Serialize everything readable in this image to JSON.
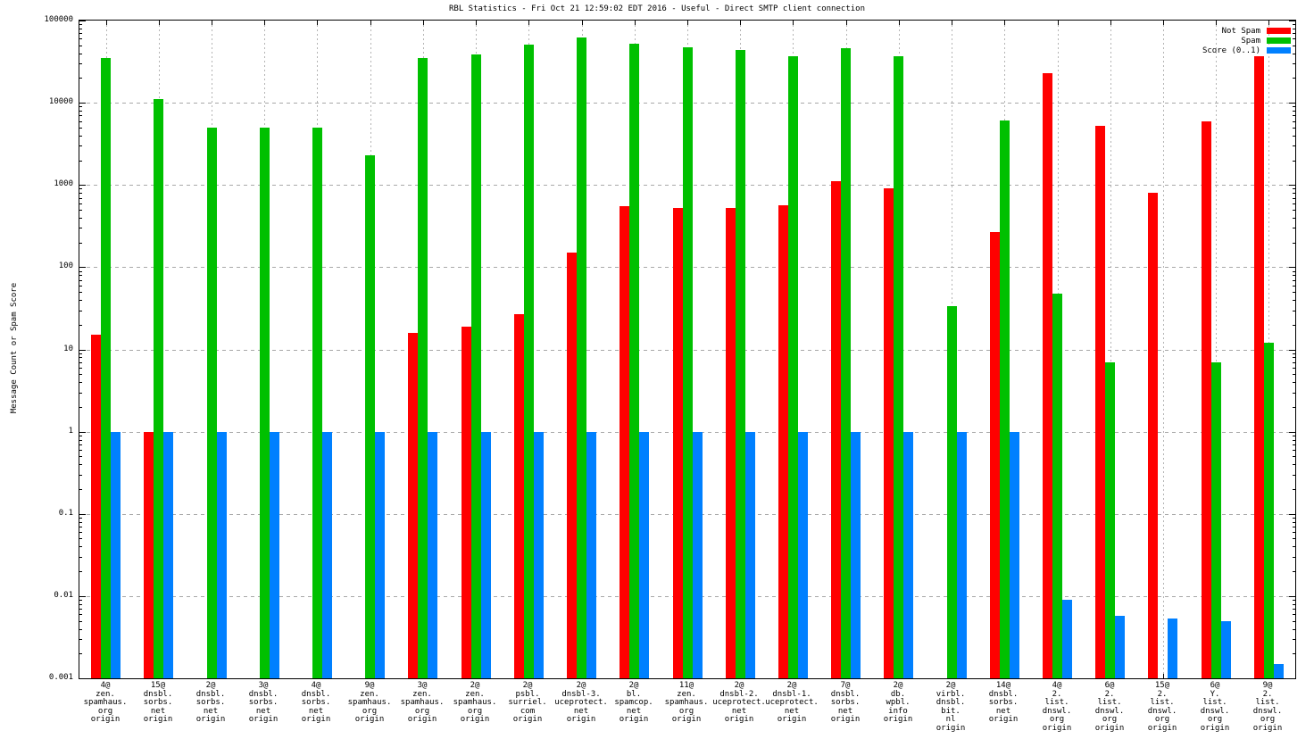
{
  "chart_data": {
    "type": "bar",
    "title": "RBL Statistics - Fri Oct 21 12:59:02 EDT 2016 - Useful - Direct SMTP client connection",
    "ylabel": "Message Count or Spam Score",
    "xlabel": "",
    "y_scale": "log",
    "ylim": [
      0.001,
      100000
    ],
    "ytick_labels": [
      "100000",
      "10000",
      "1000",
      "100",
      "10",
      "1",
      "0.1",
      "0.01",
      "0.001"
    ],
    "grid": true,
    "legend_position": "top-right",
    "categories": [
      [
        "4@",
        "zen.",
        "spamhaus.",
        "org",
        "origin"
      ],
      [
        "15@",
        "dnsbl.",
        "sorbs.",
        "net",
        "origin"
      ],
      [
        "2@",
        "dnsbl.",
        "sorbs.",
        "net",
        "origin"
      ],
      [
        "3@",
        "dnsbl.",
        "sorbs.",
        "net",
        "origin"
      ],
      [
        "4@",
        "dnsbl.",
        "sorbs.",
        "net",
        "origin"
      ],
      [
        "9@",
        "zen.",
        "spamhaus.",
        "org",
        "origin"
      ],
      [
        "3@",
        "zen.",
        "spamhaus.",
        "org",
        "origin"
      ],
      [
        "2@",
        "zen.",
        "spamhaus.",
        "org",
        "origin"
      ],
      [
        "2@",
        "psbl.",
        "surriel.",
        "com",
        "origin"
      ],
      [
        "2@",
        "dnsbl-3.",
        "uceprotect.",
        "net",
        "origin"
      ],
      [
        "2@",
        "bl.",
        "spamcop.",
        "net",
        "origin"
      ],
      [
        "11@",
        "zen.",
        "spamhaus.",
        "org",
        "origin"
      ],
      [
        "2@",
        "dnsbl-2.",
        "uceprotect.",
        "net",
        "origin"
      ],
      [
        "2@",
        "dnsbl-1.",
        "uceprotect.",
        "net",
        "origin"
      ],
      [
        "7@",
        "dnsbl.",
        "sorbs.",
        "net",
        "origin"
      ],
      [
        "2@",
        "db.",
        "wpbl.",
        "info",
        "origin"
      ],
      [
        "2@",
        "virbl.",
        "dnsbl.",
        "bit.",
        "nl",
        "origin"
      ],
      [
        "14@",
        "dnsbl.",
        "sorbs.",
        "net",
        "origin"
      ],
      [
        "4@",
        "2.",
        "list.",
        "dnswl.",
        "org",
        "origin"
      ],
      [
        "6@",
        "2.",
        "list.",
        "dnswl.",
        "org",
        "origin"
      ],
      [
        "15@",
        "2.",
        "list.",
        "dnswl.",
        "org",
        "origin"
      ],
      [
        "6@",
        "Y.",
        "list.",
        "dnswl.",
        "org",
        "origin"
      ],
      [
        "9@",
        "2.",
        "list.",
        "dnswl.",
        "org",
        "origin"
      ]
    ],
    "series": [
      {
        "name": "Not Spam",
        "color": "#ff0000",
        "values": [
          15,
          1,
          null,
          null,
          null,
          null,
          16,
          19,
          27,
          150,
          550,
          520,
          520,
          570,
          1100,
          900,
          null,
          270,
          23000,
          5200,
          800,
          5900,
          37000
        ]
      },
      {
        "name": "Spam",
        "color": "#00c000",
        "values": [
          35000,
          11000,
          5000,
          5000,
          5000,
          2300,
          35000,
          39000,
          51000,
          62000,
          52000,
          47000,
          44000,
          37000,
          46000,
          37000,
          34,
          6100,
          48,
          7,
          null,
          7,
          12
        ]
      },
      {
        "name": "Score (0..1)",
        "color": "#0080ff",
        "values": [
          1,
          1,
          1,
          1,
          1,
          1,
          1,
          1,
          1,
          1,
          1,
          1,
          1,
          1,
          1,
          1,
          1,
          1,
          0.009,
          0.0057,
          0.0053,
          0.005,
          0.0015
        ]
      }
    ]
  }
}
